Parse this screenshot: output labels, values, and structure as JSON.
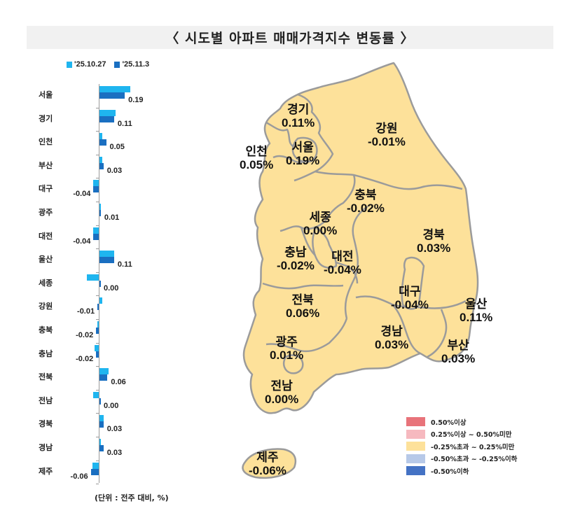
{
  "title": "〈 시도별 아파트 매매가격지수 변동률 〉",
  "legend": {
    "series": [
      {
        "label": "'25.10.27",
        "color": "#1fb5ef"
      },
      {
        "label": "'25.11.3",
        "color": "#1a6fc1"
      }
    ]
  },
  "unit_note": "(단위 : 전주 대비, %)",
  "chart_data": {
    "type": "bar",
    "orientation": "horizontal",
    "title": "시도별 아파트 매매가격지수 변동률",
    "xlabel": "전주 대비, %",
    "ylabel": "",
    "categories": [
      "서울",
      "경기",
      "인천",
      "부산",
      "대구",
      "광주",
      "대전",
      "울산",
      "세종",
      "강원",
      "충북",
      "충남",
      "전북",
      "전남",
      "경북",
      "경남",
      "제주"
    ],
    "series": [
      {
        "name": "'25.10.27",
        "color": "#1fb5ef",
        "values": [
          0.23,
          0.12,
          0.02,
          0.02,
          -0.04,
          0.0,
          -0.04,
          0.11,
          -0.09,
          0.02,
          -0.01,
          -0.03,
          0.07,
          -0.04,
          0.03,
          0.01,
          -0.05
        ]
      },
      {
        "name": "'25.11.3",
        "color": "#1a6fc1",
        "values": [
          0.19,
          0.11,
          0.05,
          0.03,
          -0.04,
          0.01,
          -0.04,
          0.11,
          0.0,
          -0.01,
          -0.02,
          -0.02,
          0.06,
          0.0,
          0.03,
          0.03,
          -0.06
        ]
      }
    ],
    "data_labels": [
      "0.19",
      "0.11",
      "0.05",
      "0.03",
      "-0.04",
      "0.01",
      "-0.04",
      "0.11",
      "0.00",
      "-0.01",
      "-0.02",
      "-0.02",
      "0.06",
      "0.00",
      "0.03",
      "0.03",
      "-0.06"
    ],
    "legend_position": "top",
    "grid": false
  },
  "map": {
    "regions": [
      {
        "name": "경기",
        "value": "0.11%"
      },
      {
        "name": "강원",
        "value": "-0.01%"
      },
      {
        "name": "인천",
        "value": "0.05%"
      },
      {
        "name": "서울",
        "value": "0.19%"
      },
      {
        "name": "충북",
        "value": "-0.02%"
      },
      {
        "name": "세종",
        "value": "0.00%"
      },
      {
        "name": "경북",
        "value": "0.03%"
      },
      {
        "name": "충남",
        "value": "-0.02%"
      },
      {
        "name": "대전",
        "value": "-0.04%"
      },
      {
        "name": "전북",
        "value": "0.06%"
      },
      {
        "name": "대구",
        "value": "-0.04%"
      },
      {
        "name": "울산",
        "value": "0.11%"
      },
      {
        "name": "경남",
        "value": "0.03%"
      },
      {
        "name": "부산",
        "value": "0.03%"
      },
      {
        "name": "광주",
        "value": "0.01%"
      },
      {
        "name": "전남",
        "value": "0.00%"
      },
      {
        "name": "제주",
        "value": "-0.06%"
      }
    ],
    "fill_color": "#fde19a",
    "border_color": "#9b9b9b",
    "legend": [
      {
        "label": "0.50%이상",
        "color": "#e8737a"
      },
      {
        "label": "0.25%이상 ~ 0.50%미만",
        "color": "#f6b9bf"
      },
      {
        "label": "-0.25%초과 ~ 0.25%미만",
        "color": "#fde19a"
      },
      {
        "label": "-0.50%초과 ~ -0.25%이하",
        "color": "#b7c9e8"
      },
      {
        "label": "-0.50%이하",
        "color": "#4472c4"
      }
    ]
  }
}
